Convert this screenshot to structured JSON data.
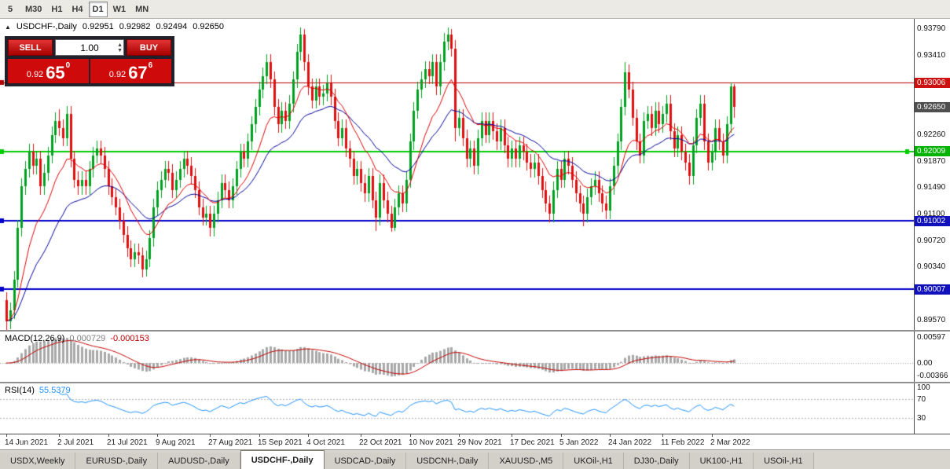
{
  "toolbar": {
    "timeframes": [
      "5",
      "M30",
      "H1",
      "H4",
      "D1",
      "W1",
      "MN"
    ],
    "active": "D1"
  },
  "header": {
    "collapse_icon": "▲",
    "symbol": "USDCHF-,Daily",
    "open": "0.92951",
    "high": "0.92982",
    "low": "0.92494",
    "close": "0.92650"
  },
  "trade_panel": {
    "sell_label": "SELL",
    "buy_label": "BUY",
    "volume": "1.00",
    "bid_prefix": "0.92",
    "bid_big": "65",
    "bid_sup": "0",
    "ask_prefix": "0.92",
    "ask_big": "67",
    "ask_sup": "6"
  },
  "price_axis": {
    "ticks": [
      "0.93790",
      "0.93410",
      "0.92260",
      "0.91870",
      "0.91490",
      "0.91100",
      "0.90720",
      "0.90340",
      "0.89570"
    ],
    "badges": [
      {
        "value": "0.93006",
        "color": "#cc1111"
      },
      {
        "value": "0.92650",
        "color": "#4f4f4f"
      },
      {
        "value": "0.92009",
        "color": "#00b300"
      },
      {
        "value": "0.91002",
        "color": "#1111bb"
      },
      {
        "value": "0.90007",
        "color": "#1111bb"
      }
    ]
  },
  "hlines": [
    {
      "price": 0.93006,
      "color": "#b00000",
      "width": 1
    },
    {
      "price": 0.92009,
      "color": "#00cc00",
      "width": 2
    },
    {
      "price": 0.91002,
      "color": "#0000cc",
      "width": 2
    },
    {
      "price": 0.90007,
      "color": "#0000cc",
      "width": 2
    }
  ],
  "macd_panel": {
    "name": "MACD(12,26,9)",
    "main_value": "0.000729",
    "signal_value": "-0.000153",
    "axis_ticks": [
      "0.00597",
      "0.00",
      "-0.00366"
    ]
  },
  "rsi_panel": {
    "name": "RSI(14)",
    "value": "55.5379",
    "axis_ticks": [
      "100",
      "70",
      "30"
    ],
    "levels": [
      70,
      30
    ]
  },
  "tabs": [
    {
      "label": "USDX,Weekly"
    },
    {
      "label": "EURUSD-,Daily"
    },
    {
      "label": "AUDUSD-,Daily"
    },
    {
      "label": "USDCHF-,Daily",
      "active": true
    },
    {
      "label": "USDCAD-,Daily"
    },
    {
      "label": "USDCNH-,Daily"
    },
    {
      "label": "XAUUSD-,M5"
    },
    {
      "label": "UKOil-,H1"
    },
    {
      "label": "DJ30-,Daily"
    },
    {
      "label": "UK100-,H1"
    },
    {
      "label": "USOil-,H1"
    }
  ],
  "chart_data": {
    "type": "candlestick",
    "symbol": "USDCHF",
    "timeframe": "Daily",
    "price_range": [
      0.8942,
      0.9393
    ],
    "up_color": "#00a020",
    "down_color": "#e01010",
    "ma_fast_color": "#dd0000",
    "ma_slow_color": "#000099",
    "indicators": {
      "macd": {
        "params": [
          12,
          26,
          9
        ],
        "last_main": 0.000729,
        "last_signal": -0.000153
      },
      "rsi": {
        "period": 14,
        "last": 55.5379
      }
    },
    "date_labels": [
      {
        "label": "14 Jun 2021",
        "i": 0
      },
      {
        "label": "2 Jul 2021",
        "i": 14
      },
      {
        "label": "21 Jul 2021",
        "i": 27
      },
      {
        "label": "9 Aug 2021",
        "i": 40
      },
      {
        "label": "27 Aug 2021",
        "i": 54
      },
      {
        "label": "15 Sep 2021",
        "i": 67
      },
      {
        "label": "4 Oct 2021",
        "i": 80
      },
      {
        "label": "22 Oct 2021",
        "i": 94
      },
      {
        "label": "10 Nov 2021",
        "i": 107
      },
      {
        "label": "29 Nov 2021",
        "i": 120
      },
      {
        "label": "17 Dec 2021",
        "i": 134
      },
      {
        "label": "5 Jan 2022",
        "i": 147
      },
      {
        "label": "24 Jan 2022",
        "i": 160
      },
      {
        "label": "11 Feb 2022",
        "i": 174
      },
      {
        "label": "2 Mar 2022",
        "i": 187
      }
    ],
    "candles": [
      [
        0.8985,
        0.8997,
        0.894,
        0.8955
      ],
      [
        0.8955,
        0.8982,
        0.8943,
        0.897
      ],
      [
        0.897,
        0.9027,
        0.8958,
        0.9015
      ],
      [
        0.9015,
        0.9102,
        0.9003,
        0.909
      ],
      [
        0.909,
        0.9162,
        0.9078,
        0.915
      ],
      [
        0.915,
        0.9187,
        0.9138,
        0.9175
      ],
      [
        0.9175,
        0.9212,
        0.9163,
        0.92
      ],
      [
        0.92,
        0.9212,
        0.9168,
        0.918
      ],
      [
        0.918,
        0.9202,
        0.9168,
        0.919
      ],
      [
        0.919,
        0.9202,
        0.9138,
        0.915
      ],
      [
        0.915,
        0.9182,
        0.9138,
        0.917
      ],
      [
        0.917,
        0.9207,
        0.9158,
        0.9195
      ],
      [
        0.9195,
        0.9237,
        0.9183,
        0.9225
      ],
      [
        0.9225,
        0.9257,
        0.9213,
        0.9245
      ],
      [
        0.9245,
        0.9262,
        0.9223,
        0.9235
      ],
      [
        0.9235,
        0.9247,
        0.9208,
        0.922
      ],
      [
        0.922,
        0.9267,
        0.9208,
        0.9255
      ],
      [
        0.9255,
        0.9267,
        0.9178,
        0.919
      ],
      [
        0.919,
        0.9202,
        0.9148,
        0.916
      ],
      [
        0.916,
        0.9172,
        0.9138,
        0.915
      ],
      [
        0.915,
        0.9172,
        0.9138,
        0.916
      ],
      [
        0.916,
        0.9172,
        0.9138,
        0.915
      ],
      [
        0.915,
        0.9187,
        0.9138,
        0.9175
      ],
      [
        0.9175,
        0.9207,
        0.9163,
        0.9195
      ],
      [
        0.9195,
        0.9217,
        0.9183,
        0.9205
      ],
      [
        0.9205,
        0.9217,
        0.9183,
        0.9195
      ],
      [
        0.9195,
        0.9207,
        0.9163,
        0.9175
      ],
      [
        0.9175,
        0.9187,
        0.9138,
        0.915
      ],
      [
        0.915,
        0.9162,
        0.9123,
        0.9135
      ],
      [
        0.9135,
        0.9147,
        0.9108,
        0.912
      ],
      [
        0.912,
        0.9132,
        0.9088,
        0.91
      ],
      [
        0.91,
        0.9112,
        0.9068,
        0.908
      ],
      [
        0.908,
        0.9092,
        0.9048,
        0.906
      ],
      [
        0.906,
        0.9072,
        0.9033,
        0.9045
      ],
      [
        0.9045,
        0.9067,
        0.9033,
        0.9055
      ],
      [
        0.9055,
        0.9067,
        0.9038,
        0.905
      ],
      [
        0.905,
        0.9062,
        0.9018,
        0.903
      ],
      [
        0.903,
        0.9057,
        0.902,
        0.9045
      ],
      [
        0.9045,
        0.9087,
        0.9033,
        0.9075
      ],
      [
        0.9075,
        0.9132,
        0.9063,
        0.912
      ],
      [
        0.912,
        0.9157,
        0.9108,
        0.9145
      ],
      [
        0.9145,
        0.9172,
        0.9133,
        0.916
      ],
      [
        0.916,
        0.9187,
        0.9148,
        0.9175
      ],
      [
        0.9175,
        0.9187,
        0.9158,
        0.917
      ],
      [
        0.917,
        0.9182,
        0.9133,
        0.9145
      ],
      [
        0.9145,
        0.9172,
        0.9133,
        0.916
      ],
      [
        0.916,
        0.9187,
        0.9148,
        0.9175
      ],
      [
        0.9175,
        0.9202,
        0.9163,
        0.919
      ],
      [
        0.919,
        0.9202,
        0.9168,
        0.918
      ],
      [
        0.918,
        0.9192,
        0.9153,
        0.9165
      ],
      [
        0.9165,
        0.9177,
        0.9133,
        0.9145
      ],
      [
        0.9145,
        0.9157,
        0.9108,
        0.912
      ],
      [
        0.912,
        0.9132,
        0.9093,
        0.9105
      ],
      [
        0.9105,
        0.9122,
        0.9093,
        0.911
      ],
      [
        0.911,
        0.9122,
        0.9078,
        0.909
      ],
      [
        0.909,
        0.9122,
        0.9078,
        0.911
      ],
      [
        0.911,
        0.9142,
        0.9098,
        0.913
      ],
      [
        0.913,
        0.9167,
        0.9118,
        0.9155
      ],
      [
        0.9155,
        0.9167,
        0.9133,
        0.9145
      ],
      [
        0.9145,
        0.9157,
        0.9118,
        0.913
      ],
      [
        0.913,
        0.9162,
        0.9118,
        0.915
      ],
      [
        0.915,
        0.9187,
        0.9138,
        0.9175
      ],
      [
        0.9175,
        0.9212,
        0.9163,
        0.92
      ],
      [
        0.92,
        0.9212,
        0.9178,
        0.919
      ],
      [
        0.919,
        0.9227,
        0.9178,
        0.9215
      ],
      [
        0.9215,
        0.9252,
        0.9203,
        0.924
      ],
      [
        0.924,
        0.9277,
        0.9228,
        0.9265
      ],
      [
        0.9265,
        0.9302,
        0.9253,
        0.929
      ],
      [
        0.929,
        0.9322,
        0.9278,
        0.931
      ],
      [
        0.931,
        0.9342,
        0.9298,
        0.933
      ],
      [
        0.933,
        0.9342,
        0.9293,
        0.9305
      ],
      [
        0.9305,
        0.9317,
        0.9253,
        0.9265
      ],
      [
        0.9265,
        0.9277,
        0.9228,
        0.924
      ],
      [
        0.924,
        0.9272,
        0.9228,
        0.926
      ],
      [
        0.926,
        0.9272,
        0.9233,
        0.9245
      ],
      [
        0.9245,
        0.9282,
        0.9233,
        0.927
      ],
      [
        0.927,
        0.9317,
        0.9258,
        0.9305
      ],
      [
        0.9305,
        0.9357,
        0.9293,
        0.9345
      ],
      [
        0.9345,
        0.9381,
        0.9333,
        0.937
      ],
      [
        0.937,
        0.9378,
        0.9318,
        0.933
      ],
      [
        0.933,
        0.9342,
        0.9283,
        0.9295
      ],
      [
        0.9295,
        0.9307,
        0.9263,
        0.9275
      ],
      [
        0.9275,
        0.9307,
        0.9263,
        0.9295
      ],
      [
        0.9295,
        0.9307,
        0.9268,
        0.928
      ],
      [
        0.928,
        0.9297,
        0.9268,
        0.9285
      ],
      [
        0.9285,
        0.9312,
        0.9273,
        0.93
      ],
      [
        0.93,
        0.9312,
        0.9268,
        0.928
      ],
      [
        0.928,
        0.9292,
        0.9233,
        0.9245
      ],
      [
        0.9245,
        0.9257,
        0.9208,
        0.922
      ],
      [
        0.922,
        0.9247,
        0.9208,
        0.9235
      ],
      [
        0.9235,
        0.9247,
        0.9193,
        0.9205
      ],
      [
        0.9205,
        0.9217,
        0.9178,
        0.919
      ],
      [
        0.919,
        0.9202,
        0.9153,
        0.9165
      ],
      [
        0.9165,
        0.9187,
        0.9153,
        0.9175
      ],
      [
        0.9175,
        0.9187,
        0.9143,
        0.9155
      ],
      [
        0.9155,
        0.9167,
        0.9128,
        0.914
      ],
      [
        0.914,
        0.9177,
        0.9128,
        0.9165
      ],
      [
        0.9165,
        0.9177,
        0.9118,
        0.913
      ],
      [
        0.913,
        0.9142,
        0.9085,
        0.9105
      ],
      [
        0.9105,
        0.9167,
        0.9093,
        0.9155
      ],
      [
        0.9155,
        0.9167,
        0.9118,
        0.913
      ],
      [
        0.913,
        0.9142,
        0.9098,
        0.911
      ],
      [
        0.911,
        0.9122,
        0.9084,
        0.909
      ],
      [
        0.909,
        0.9132,
        0.9086,
        0.912
      ],
      [
        0.912,
        0.9152,
        0.9108,
        0.914
      ],
      [
        0.914,
        0.9152,
        0.9113,
        0.9125
      ],
      [
        0.9125,
        0.9172,
        0.9113,
        0.916
      ],
      [
        0.916,
        0.9227,
        0.9148,
        0.9215
      ],
      [
        0.9215,
        0.9272,
        0.9203,
        0.926
      ],
      [
        0.926,
        0.9302,
        0.9248,
        0.929
      ],
      [
        0.929,
        0.9317,
        0.9278,
        0.9305
      ],
      [
        0.9305,
        0.9332,
        0.9293,
        0.932
      ],
      [
        0.932,
        0.9332,
        0.9298,
        0.931
      ],
      [
        0.931,
        0.9342,
        0.9298,
        0.933
      ],
      [
        0.933,
        0.9342,
        0.9283,
        0.9295
      ],
      [
        0.9295,
        0.9342,
        0.9283,
        0.933
      ],
      [
        0.933,
        0.9372,
        0.9318,
        0.936
      ],
      [
        0.936,
        0.9381,
        0.9348,
        0.937
      ],
      [
        0.937,
        0.9378,
        0.9338,
        0.935
      ],
      [
        0.935,
        0.9362,
        0.9215,
        0.9235
      ],
      [
        0.9235,
        0.9262,
        0.9223,
        0.925
      ],
      [
        0.925,
        0.9262,
        0.9208,
        0.922
      ],
      [
        0.922,
        0.9232,
        0.9178,
        0.919
      ],
      [
        0.919,
        0.9217,
        0.9178,
        0.9205
      ],
      [
        0.9205,
        0.9217,
        0.9168,
        0.918
      ],
      [
        0.918,
        0.9232,
        0.9168,
        0.922
      ],
      [
        0.922,
        0.9257,
        0.9208,
        0.9245
      ],
      [
        0.9245,
        0.9257,
        0.9213,
        0.9225
      ],
      [
        0.9225,
        0.9257,
        0.9213,
        0.9245
      ],
      [
        0.9245,
        0.9257,
        0.9218,
        0.923
      ],
      [
        0.923,
        0.9242,
        0.9203,
        0.9215
      ],
      [
        0.9215,
        0.9247,
        0.9203,
        0.9235
      ],
      [
        0.9235,
        0.9247,
        0.9198,
        0.921
      ],
      [
        0.921,
        0.9222,
        0.9178,
        0.919
      ],
      [
        0.919,
        0.9217,
        0.9178,
        0.9205
      ],
      [
        0.9205,
        0.9217,
        0.9178,
        0.919
      ],
      [
        0.919,
        0.9222,
        0.9178,
        0.921
      ],
      [
        0.921,
        0.9222,
        0.9188,
        0.92
      ],
      [
        0.92,
        0.9212,
        0.9173,
        0.9185
      ],
      [
        0.9185,
        0.9197,
        0.9163,
        0.9175
      ],
      [
        0.9175,
        0.9197,
        0.9163,
        0.9185
      ],
      [
        0.9185,
        0.9197,
        0.9153,
        0.9165
      ],
      [
        0.9165,
        0.9177,
        0.9133,
        0.9145
      ],
      [
        0.9145,
        0.9157,
        0.9113,
        0.9125
      ],
      [
        0.9125,
        0.9137,
        0.9098,
        0.911
      ],
      [
        0.911,
        0.9157,
        0.9098,
        0.9145
      ],
      [
        0.9145,
        0.9187,
        0.9133,
        0.9175
      ],
      [
        0.9175,
        0.9187,
        0.9148,
        0.916
      ],
      [
        0.916,
        0.9202,
        0.9148,
        0.919
      ],
      [
        0.919,
        0.9202,
        0.9168,
        0.918
      ],
      [
        0.918,
        0.9192,
        0.9148,
        0.916
      ],
      [
        0.916,
        0.9172,
        0.9128,
        0.914
      ],
      [
        0.914,
        0.9152,
        0.9113,
        0.9125
      ],
      [
        0.9125,
        0.9137,
        0.9092,
        0.911
      ],
      [
        0.911,
        0.9147,
        0.9098,
        0.9135
      ],
      [
        0.9135,
        0.9162,
        0.9123,
        0.915
      ],
      [
        0.915,
        0.9172,
        0.9138,
        0.916
      ],
      [
        0.916,
        0.9172,
        0.9128,
        0.914
      ],
      [
        0.914,
        0.9152,
        0.9113,
        0.9125
      ],
      [
        0.9125,
        0.9137,
        0.9103,
        0.9115
      ],
      [
        0.9115,
        0.9162,
        0.9103,
        0.915
      ],
      [
        0.915,
        0.9192,
        0.9138,
        0.918
      ],
      [
        0.918,
        0.9227,
        0.9168,
        0.9215
      ],
      [
        0.9215,
        0.9277,
        0.9203,
        0.9265
      ],
      [
        0.9265,
        0.933,
        0.9253,
        0.9315
      ],
      [
        0.9315,
        0.9327,
        0.9278,
        0.929
      ],
      [
        0.929,
        0.9302,
        0.9238,
        0.925
      ],
      [
        0.925,
        0.9262,
        0.9203,
        0.9215
      ],
      [
        0.9215,
        0.9227,
        0.9183,
        0.9195
      ],
      [
        0.9195,
        0.9257,
        0.9183,
        0.9245
      ],
      [
        0.9245,
        0.9267,
        0.9233,
        0.9255
      ],
      [
        0.9255,
        0.9267,
        0.9223,
        0.9235
      ],
      [
        0.9235,
        0.9272,
        0.9223,
        0.926
      ],
      [
        0.926,
        0.9272,
        0.9228,
        0.924
      ],
      [
        0.924,
        0.9267,
        0.9228,
        0.9255
      ],
      [
        0.9255,
        0.9282,
        0.9243,
        0.927
      ],
      [
        0.927,
        0.9282,
        0.9218,
        0.923
      ],
      [
        0.923,
        0.9242,
        0.9193,
        0.9205
      ],
      [
        0.9205,
        0.9237,
        0.9193,
        0.9225
      ],
      [
        0.9225,
        0.9237,
        0.9188,
        0.92
      ],
      [
        0.92,
        0.9212,
        0.9173,
        0.9185
      ],
      [
        0.9185,
        0.9197,
        0.9153,
        0.9165
      ],
      [
        0.9165,
        0.9222,
        0.9153,
        0.921
      ],
      [
        0.921,
        0.9262,
        0.9198,
        0.925
      ],
      [
        0.925,
        0.9282,
        0.9238,
        0.927
      ],
      [
        0.927,
        0.9282,
        0.9203,
        0.9215
      ],
      [
        0.9215,
        0.9227,
        0.9173,
        0.9185
      ],
      [
        0.9185,
        0.9212,
        0.9173,
        0.92
      ],
      [
        0.92,
        0.9247,
        0.9188,
        0.9235
      ],
      [
        0.9235,
        0.9247,
        0.9203,
        0.9215
      ],
      [
        0.9215,
        0.9227,
        0.9183,
        0.9195
      ],
      [
        0.9195,
        0.9252,
        0.9183,
        0.924
      ],
      [
        0.924,
        0.9301,
        0.9228,
        0.9295
      ],
      [
        0.9295,
        0.9298,
        0.9249,
        0.9265
      ]
    ]
  }
}
